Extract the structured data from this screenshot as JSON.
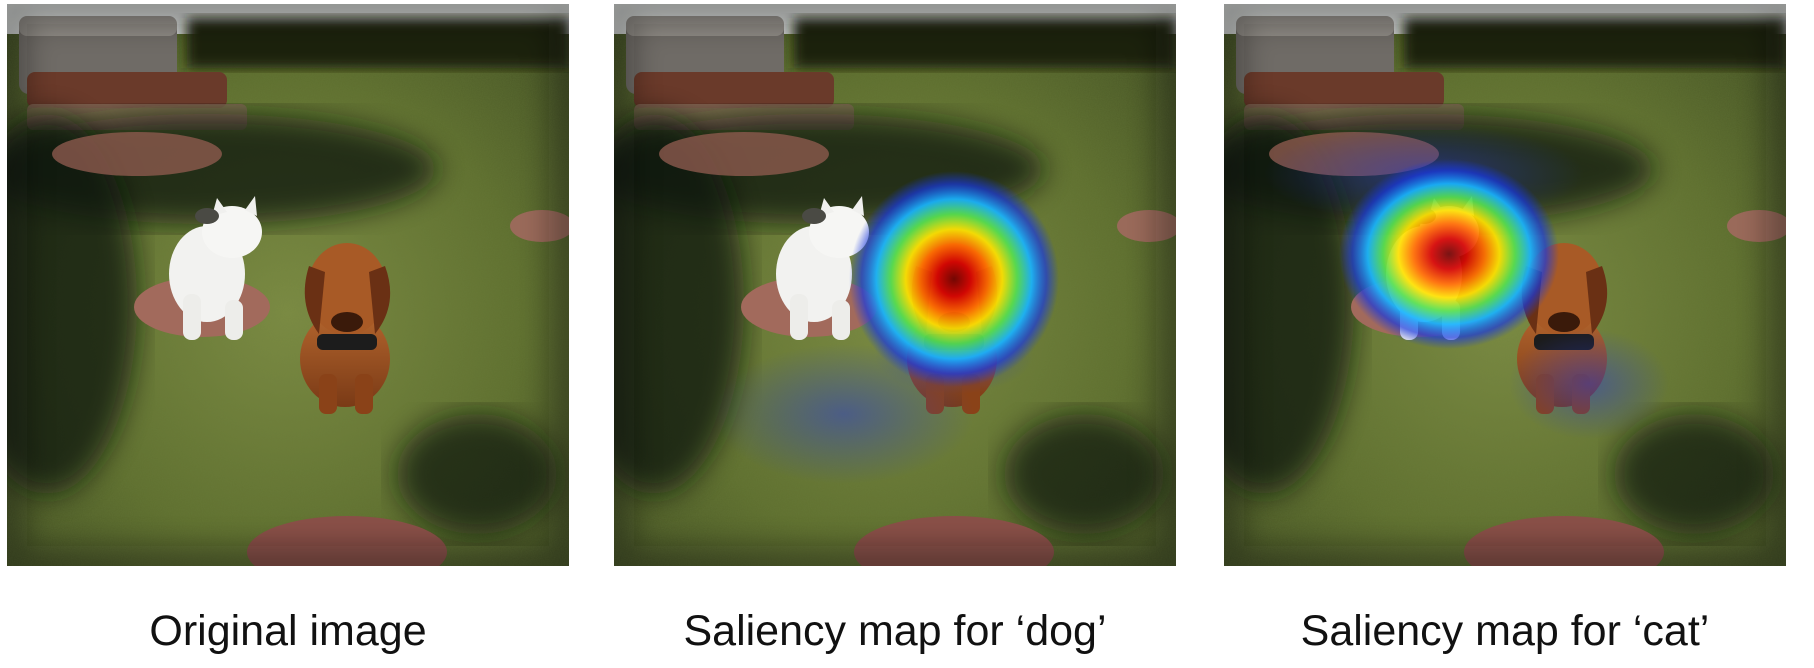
{
  "panels": [
    {
      "caption": "Original image",
      "heatmap": "none"
    },
    {
      "caption": "Saliency map for ‘dog’",
      "heatmap": "dog"
    },
    {
      "caption": "Saliency map for ‘cat’",
      "heatmap": "cat"
    }
  ],
  "colors": {
    "grass": "#5e6e2e",
    "heat_core": "#b00000",
    "heat_mid": "#ffd000",
    "heat_outer": "#2050ff"
  }
}
